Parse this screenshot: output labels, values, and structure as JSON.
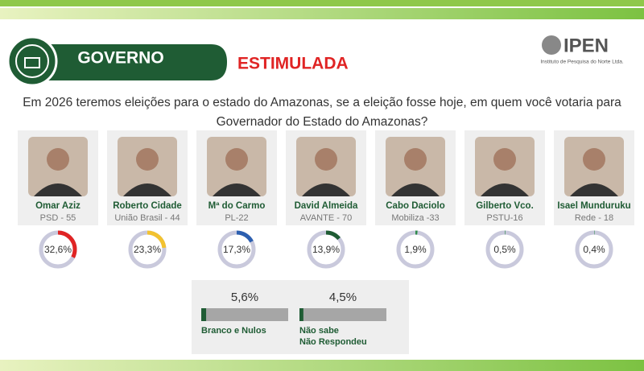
{
  "header": {
    "title": "GOVERNO",
    "subtitle": "ESTIMULADA",
    "logo": "IPEN",
    "logo_caption": "Instituto de Pesquisa do Norte Ltda."
  },
  "question": [
    "Em 2026 teremos eleições para o estado do Amazonas, se a eleição fosse hoje, em quem você votaria para",
    "Governador do Estado do Amazonas?"
  ],
  "candidates": [
    {
      "name": "Omar Aziz",
      "party": "PSD - 55",
      "value": 32.6,
      "value_label": "32,6%",
      "color": "#e02424"
    },
    {
      "name": "Roberto Cidade",
      "party": "União Brasil - 44",
      "value": 23.3,
      "value_label": "23,3%",
      "color": "#f2c230"
    },
    {
      "name": "Mª do Carmo",
      "party": "PL-22",
      "value": 17.3,
      "value_label": "17,3%",
      "color": "#2c5fb0"
    },
    {
      "name": "David Almeida",
      "party": "AVANTE - 70",
      "value": 13.9,
      "value_label": "13,9%",
      "color": "#1f5c34"
    },
    {
      "name": "Cabo Daciolo",
      "party": "Mobiliza -33",
      "value": 1.9,
      "value_label": "1,9%",
      "color": "#2e8b4a"
    },
    {
      "name": "Gilberto Vco.",
      "party": "PSTU-16",
      "value": 0.5,
      "value_label": "0,5%",
      "color": "#2e8b4a"
    },
    {
      "name": "Isael Munduruku",
      "party": "Rede - 18",
      "value": 0.4,
      "value_label": "0,4%",
      "color": "#2e8b4a"
    }
  ],
  "others": [
    {
      "lines": [
        "Branco e Nulos"
      ],
      "value": 5.6,
      "value_label": "5,6%",
      "color": "#1f5c34"
    },
    {
      "lines": [
        "Não sabe",
        "Não Respondeu"
      ],
      "value": 4.5,
      "value_label": "4,5%",
      "color": "#1f5c34"
    }
  ]
}
